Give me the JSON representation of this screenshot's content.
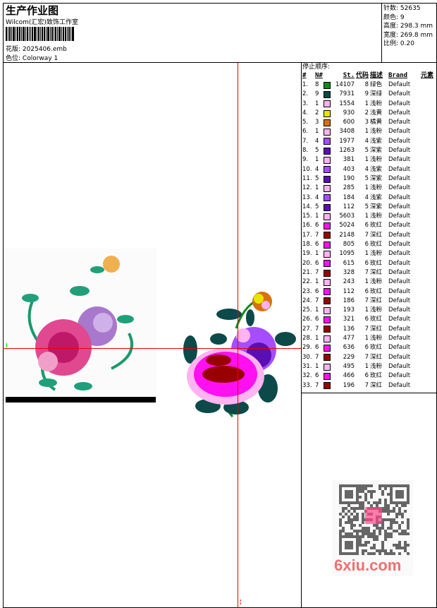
{
  "header": {
    "title": "生产作业图",
    "company": "Wilcom(汇宏)致饰工作室",
    "design_label": "花版:",
    "design_value": "2025406.emb",
    "colorway_label": "色位:",
    "colorway_value": "Colorway 1"
  },
  "info": {
    "stitches": "针数: 52635",
    "colors": "颜色: 9",
    "height": "高度: 298.3 mm",
    "width": "宽度: 269.8 mm",
    "scale": "比例: 0.20"
  },
  "table": {
    "title": "停止顺序:",
    "headers": [
      "#",
      "N#",
      "St.",
      "代码",
      "描述",
      "Brand",
      "元素"
    ],
    "rows": [
      [
        "1.",
        "8",
        "#118a1a",
        "14107",
        "8",
        "绿色",
        "Default"
      ],
      [
        "2.",
        "9",
        "#0b4a48",
        "7931",
        "9",
        "深绿",
        "Default"
      ],
      [
        "3.",
        "1",
        "#ffb3f0",
        "1554",
        "1",
        "浅粉",
        "Default"
      ],
      [
        "4.",
        "2",
        "#e6e600",
        "930",
        "2",
        "浅黄",
        "Default"
      ],
      [
        "5.",
        "3",
        "#d9700f",
        "600",
        "3",
        "橘黄",
        "Default"
      ],
      [
        "6.",
        "1",
        "#ffb3f0",
        "3408",
        "1",
        "浅粉",
        "Default"
      ],
      [
        "7.",
        "4",
        "#a64dff",
        "1977",
        "4",
        "浅紫",
        "Default"
      ],
      [
        "8.",
        "5",
        "#5a0fb3",
        "1263",
        "5",
        "深紫",
        "Default"
      ],
      [
        "9.",
        "1",
        "#ffb3f0",
        "381",
        "1",
        "浅粉",
        "Default"
      ],
      [
        "10.",
        "4",
        "#a64dff",
        "403",
        "4",
        "浅紫",
        "Default"
      ],
      [
        "11.",
        "5",
        "#5a0fb3",
        "190",
        "5",
        "深紫",
        "Default"
      ],
      [
        "12.",
        "1",
        "#ffb3f0",
        "285",
        "1",
        "浅粉",
        "Default"
      ],
      [
        "13.",
        "4",
        "#a64dff",
        "184",
        "4",
        "浅紫",
        "Default"
      ],
      [
        "14.",
        "5",
        "#5a0fb3",
        "112",
        "5",
        "深紫",
        "Default"
      ],
      [
        "15.",
        "1",
        "#ffb3f0",
        "5603",
        "1",
        "浅粉",
        "Default"
      ],
      [
        "16.",
        "6",
        "#ff10f0",
        "5024",
        "6",
        "玫红",
        "Default"
      ],
      [
        "17.",
        "7",
        "#990000",
        "2148",
        "7",
        "深红",
        "Default"
      ],
      [
        "18.",
        "6",
        "#ff10f0",
        "805",
        "6",
        "玫红",
        "Default"
      ],
      [
        "19.",
        "1",
        "#ffb3f0",
        "1095",
        "1",
        "浅粉",
        "Default"
      ],
      [
        "20.",
        "6",
        "#ff10f0",
        "615",
        "6",
        "玫红",
        "Default"
      ],
      [
        "21.",
        "7",
        "#990000",
        "328",
        "7",
        "深红",
        "Default"
      ],
      [
        "22.",
        "1",
        "#ffb3f0",
        "243",
        "1",
        "浅粉",
        "Default"
      ],
      [
        "23.",
        "6",
        "#ff10f0",
        "112",
        "6",
        "玫红",
        "Default"
      ],
      [
        "24.",
        "7",
        "#990000",
        "186",
        "7",
        "深红",
        "Default"
      ],
      [
        "25.",
        "1",
        "#ffb3f0",
        "193",
        "1",
        "浅粉",
        "Default"
      ],
      [
        "26.",
        "6",
        "#ff10f0",
        "321",
        "6",
        "玫红",
        "Default"
      ],
      [
        "27.",
        "7",
        "#990000",
        "136",
        "7",
        "深红",
        "Default"
      ],
      [
        "28.",
        "1",
        "#ffb3f0",
        "477",
        "1",
        "浅粉",
        "Default"
      ],
      [
        "29.",
        "6",
        "#ff10f0",
        "636",
        "6",
        "玫红",
        "Default"
      ],
      [
        "30.",
        "7",
        "#990000",
        "229",
        "7",
        "深红",
        "Default"
      ],
      [
        "31.",
        "1",
        "#ffb3f0",
        "495",
        "1",
        "浅粉",
        "Default"
      ],
      [
        "32.",
        "6",
        "#ff10f0",
        "466",
        "6",
        "玫红",
        "Default"
      ],
      [
        "33.",
        "7",
        "#990000",
        "196",
        "7",
        "深红",
        "Default"
      ]
    ]
  },
  "watermark": {
    "text": "6xiu.com",
    "seal": "秀图"
  },
  "colors": {
    "guide_line": "#e00000"
  }
}
